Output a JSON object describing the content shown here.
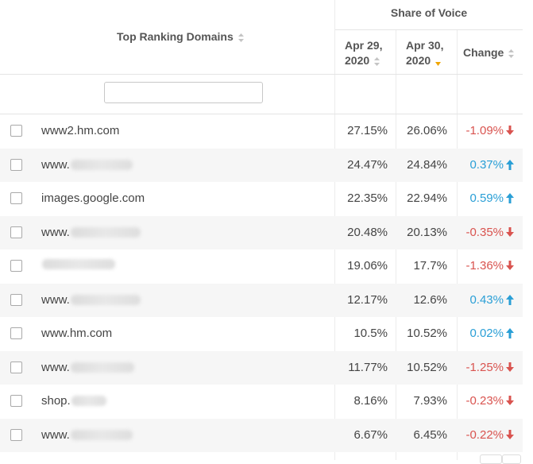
{
  "header": {
    "share_of_voice": "Share of Voice",
    "top_ranking_domains": "Top Ranking Domains",
    "apr29_line1": "Apr 29,",
    "apr29_line2": "2020",
    "apr30_line1": "Apr 30,",
    "apr30_line2": "2020",
    "change": "Change"
  },
  "filter": {
    "value": "",
    "placeholder": ""
  },
  "colors": {
    "negative": "#d9534f",
    "positive": "#2a9fd6",
    "active_sort": "#f0a500"
  },
  "rows": [
    {
      "domain": "www2.hm.com",
      "obscured": false,
      "apr29": "27.15%",
      "apr30": "26.06%",
      "change": "-1.09%",
      "direction": "down"
    },
    {
      "domain": "www.",
      "obscured": true,
      "apr29": "24.47%",
      "apr30": "24.84%",
      "change": "0.37%",
      "direction": "up"
    },
    {
      "domain": "images.google.com",
      "obscured": false,
      "apr29": "22.35%",
      "apr30": "22.94%",
      "change": "0.59%",
      "direction": "up"
    },
    {
      "domain": "www.",
      "obscured": true,
      "apr29": "20.48%",
      "apr30": "20.13%",
      "change": "-0.35%",
      "direction": "down"
    },
    {
      "domain": "",
      "obscured": true,
      "apr29": "19.06%",
      "apr30": "17.7%",
      "change": "-1.36%",
      "direction": "down"
    },
    {
      "domain": "www.",
      "obscured": true,
      "apr29": "12.17%",
      "apr30": "12.6%",
      "change": "0.43%",
      "direction": "up"
    },
    {
      "domain": "www.hm.com",
      "obscured": false,
      "apr29": "10.5%",
      "apr30": "10.52%",
      "change": "0.02%",
      "direction": "up"
    },
    {
      "domain": "www.",
      "obscured": true,
      "apr29": "11.77%",
      "apr30": "10.52%",
      "change": "-1.25%",
      "direction": "down"
    },
    {
      "domain": "shop.",
      "obscured": true,
      "apr29": "8.16%",
      "apr30": "7.93%",
      "change": "-0.23%",
      "direction": "down"
    },
    {
      "domain": "www.",
      "obscured": true,
      "apr29": "6.67%",
      "apr30": "6.45%",
      "change": "-0.22%",
      "direction": "down"
    }
  ]
}
